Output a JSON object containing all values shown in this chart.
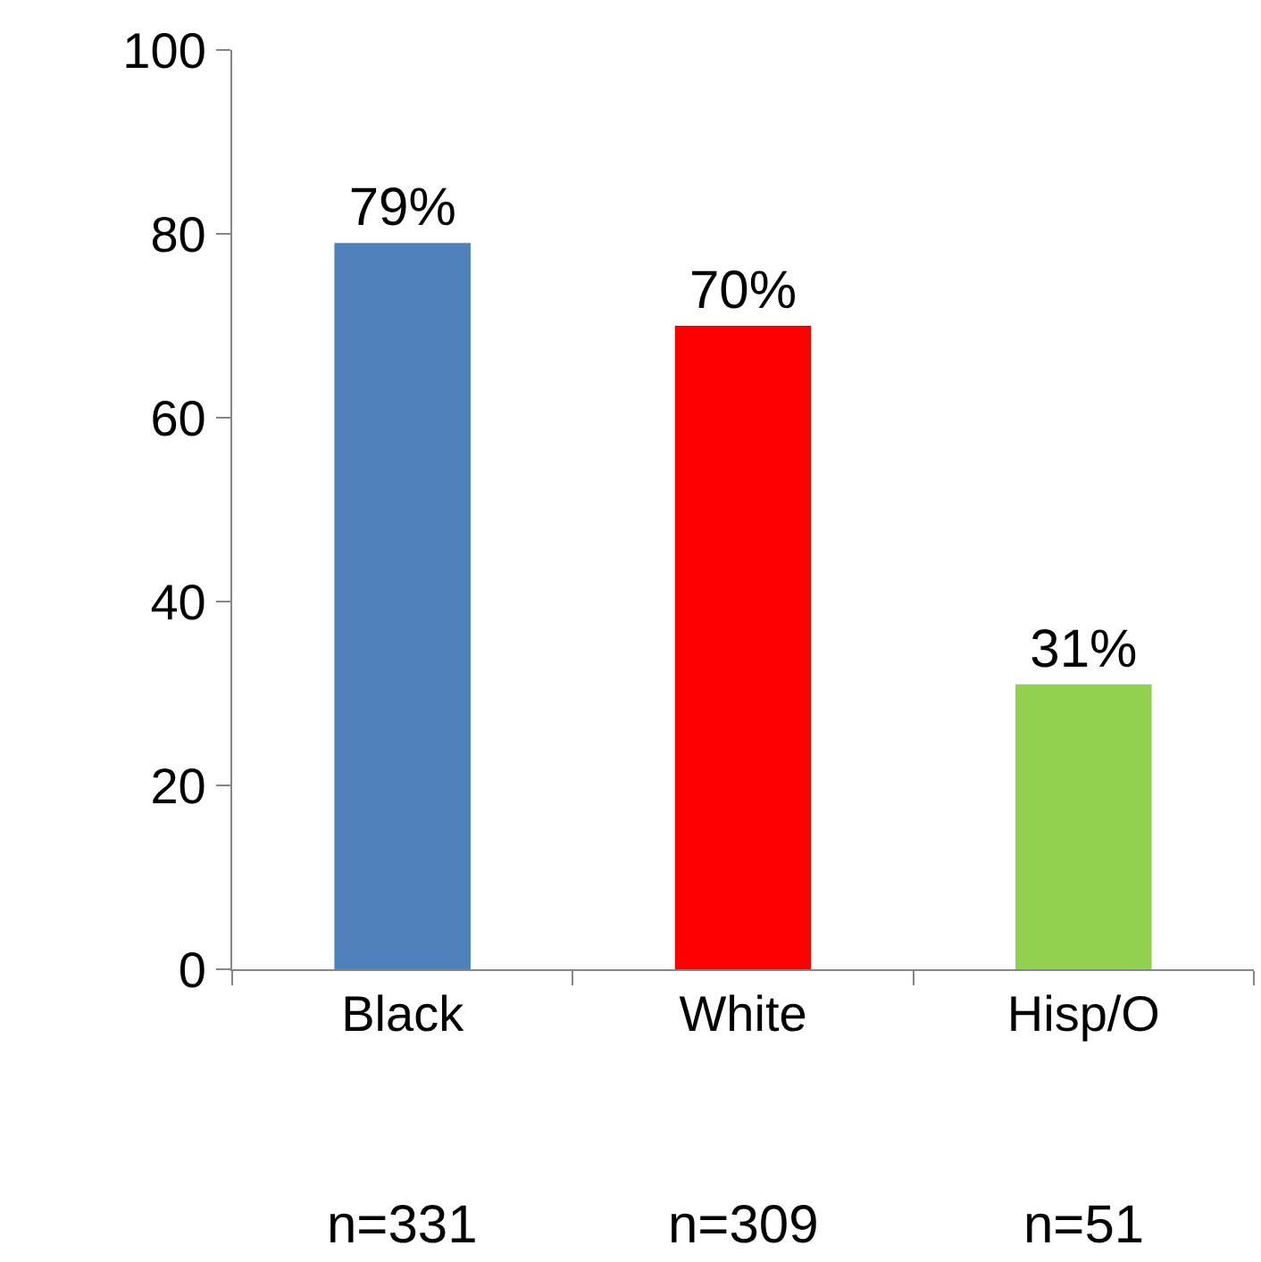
{
  "chart_data": {
    "type": "bar",
    "categories": [
      "Black",
      "White",
      "Hisp/O"
    ],
    "values": [
      79,
      70,
      31
    ],
    "colors": [
      "#4f81bd",
      "#ff0000",
      "#92d050"
    ],
    "value_labels": [
      "79%",
      "70%",
      "31%"
    ],
    "ylim": [
      0,
      100
    ],
    "yticks": [
      0,
      20,
      40,
      60,
      80,
      100
    ],
    "annotations": [
      "n=331",
      "n=309",
      "n=51"
    ]
  }
}
